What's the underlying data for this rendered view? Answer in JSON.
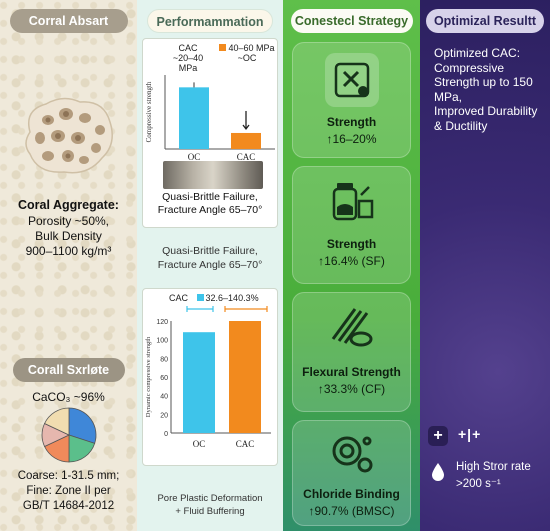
{
  "columns": {
    "coral": {
      "header": "Corral Absart",
      "aggregate_heading": "Coral Aggregate:",
      "porosity": "Porosity ~50%,",
      "density_label": "Bulk Density",
      "density_value": "900–1100 kg/m³",
      "sub_header": "Corall Sxrløte",
      "caco3": "CaCO₃ ~96%",
      "pie_slices": [
        {
          "value": 30,
          "color": "#3f87d8"
        },
        {
          "value": 20,
          "color": "#5bbf8b"
        },
        {
          "value": 18,
          "color": "#f08a5b"
        },
        {
          "value": 14,
          "color": "#e6b7ae"
        },
        {
          "value": 18,
          "color": "#f1ddb0"
        }
      ],
      "grading_1": "Coarse: 1-31.5 mm;",
      "grading_2": "Fine: Zone II per",
      "grading_3": "GB/T 14684-2012"
    },
    "performance": {
      "header": "Performammation",
      "chart1": {
        "type": "bar",
        "legend_a": "CAC",
        "legend_a_sub": "~20–40 MPa",
        "legend_b": "40–60 MPa",
        "legend_b_sub": "~OC",
        "ylabel": "Compressive strength",
        "categories": [
          "OC",
          "CAC"
        ],
        "values": [
          100,
          26
        ],
        "colors": [
          "#3ec4ea",
          "#f28a1e"
        ],
        "ylim": [
          0,
          120
        ]
      },
      "failure_1": "Quasi-Brittle Failure,",
      "failure_2": "Fracture Angle 65–70°",
      "failure_dup_1": "Quasi-Brittle Failure,",
      "failure_dup_2": "Fracture Angle 65–70°",
      "chart2": {
        "type": "bar",
        "legend_a": "CAC",
        "legend_b": "32.6–140.3%",
        "ylabel": "Dynamic compressive strength",
        "categories": [
          "OC",
          "CAC"
        ],
        "values": [
          108,
          120
        ],
        "colors": [
          "#3ec4ea",
          "#f28a1e"
        ],
        "yticks": [
          "120",
          "100",
          "80",
          "60",
          "40",
          "20",
          "0"
        ],
        "ylim": [
          0,
          120
        ]
      },
      "footer_1": "Pore Plastic Deformation",
      "footer_2": "+ Fluid Buffering"
    },
    "strategy": {
      "header": "Conestecl Strategy",
      "items": [
        {
          "icon": "tool-icon",
          "title": "Strength",
          "value": "↑16–20%"
        },
        {
          "icon": "jar-icon",
          "title": "Strength",
          "value": "↑16.4% (SF)"
        },
        {
          "icon": "fiber-icon",
          "title": "Flexural Strength",
          "value": "↑33.3% (CF)"
        },
        {
          "icon": "bubbles-icon",
          "title": "Chloride Binding",
          "value": "↑90.7% (BMSC)"
        }
      ]
    },
    "optimized": {
      "header": "Optimizal Resultt",
      "lines": [
        "Optimized CAC:",
        "Compressive",
        "Strength up to 150",
        "MPa,",
        "Improved Durability",
        "& Ductility"
      ],
      "plus_symbol": "+",
      "mark_symbol": "+|+",
      "rate_1": "High Stror rate",
      "rate_2": ">200 s⁻¹"
    }
  }
}
